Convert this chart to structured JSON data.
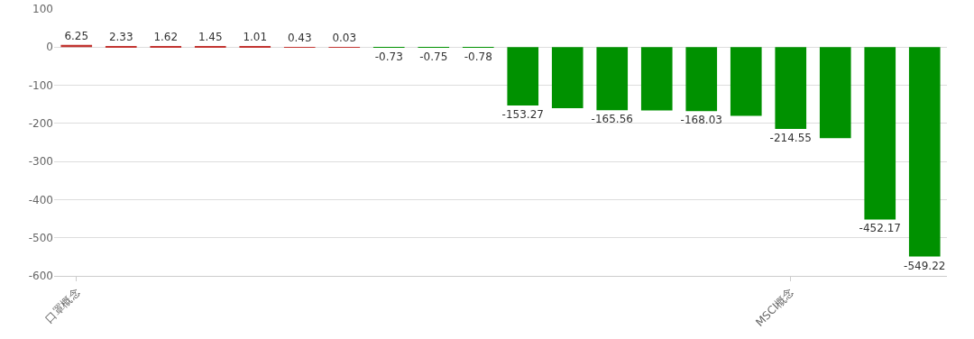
{
  "chart_data": {
    "type": "bar",
    "categories": [
      "口罩概念",
      null,
      null,
      null,
      null,
      null,
      null,
      null,
      null,
      null,
      null,
      null,
      null,
      null,
      null,
      null,
      "MSCI概念",
      null,
      null,
      null
    ],
    "values": [
      6.25,
      2.33,
      1.62,
      1.45,
      1.01,
      0.43,
      0.03,
      -0.73,
      -0.75,
      -0.78,
      -153.27,
      -160,
      -165.56,
      -166,
      -168.03,
      -180,
      -214.55,
      -239,
      -452.17,
      -549.22
    ],
    "value_labels": [
      "6.25",
      "2.33",
      "1.62",
      "1.45",
      "1.01",
      "0.43",
      "0.03",
      "-0.73",
      "-0.75",
      "-0.78",
      "-153.27",
      null,
      "-165.56",
      null,
      "-168.03",
      null,
      "-214.55",
      null,
      "-452.17",
      "-549.22"
    ],
    "colors": [
      "#c23531",
      "#c23531",
      "#c23531",
      "#c23531",
      "#c23531",
      "#c23531",
      "#c23531",
      "#009100",
      "#009100",
      "#009100",
      "#009100",
      "#009100",
      "#009100",
      "#009100",
      "#009100",
      "#009100",
      "#009100",
      "#009100",
      "#009100",
      "#009100"
    ],
    "ylim": [
      -600,
      100
    ],
    "yticks": [
      100,
      0,
      -100,
      -200,
      -300,
      -400,
      -500,
      -600
    ],
    "grid": "y"
  }
}
